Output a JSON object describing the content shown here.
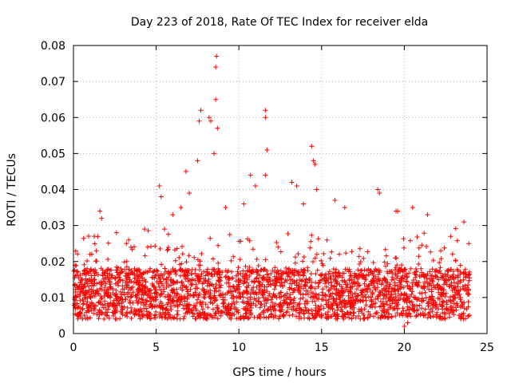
{
  "chart_data": {
    "type": "scatter",
    "title": "Day 223 of 2018, Rate Of TEC Index for receiver elda",
    "xlabel": "GPS time / hours",
    "ylabel": "ROTI / TECUs",
    "xlim": [
      0,
      25
    ],
    "ylim": [
      0,
      0.08
    ],
    "xticks": [
      0,
      5,
      10,
      15,
      20,
      25
    ],
    "yticks": [
      0,
      0.01,
      0.02,
      0.03,
      0.04,
      0.05,
      0.06,
      0.07,
      0.08
    ],
    "xtick_labels": [
      "0",
      "5",
      "10",
      "15",
      "20",
      "25"
    ],
    "ytick_labels": [
      "0",
      "0.01",
      "0.02",
      "0.03",
      "0.04",
      "0.05",
      "0.06",
      "0.07",
      "0.08"
    ],
    "grid": true,
    "marker": "+",
    "color": "#ff0000",
    "series": [
      {
        "name": "ROTI",
        "note": "dense band roughly 0.004-0.02 across 0-24 h; listed points are representative peaks and sampled values",
        "points": [
          [
            0.1,
            0.019
          ],
          [
            0.5,
            0.015
          ],
          [
            1.0,
            0.022
          ],
          [
            1.6,
            0.034
          ],
          [
            1.7,
            0.032
          ],
          [
            2.6,
            0.028
          ],
          [
            3.2,
            0.025
          ],
          [
            4.3,
            0.029
          ],
          [
            5.2,
            0.041
          ],
          [
            5.3,
            0.038
          ],
          [
            5.5,
            0.029
          ],
          [
            6.0,
            0.033
          ],
          [
            6.5,
            0.035
          ],
          [
            6.8,
            0.045
          ],
          [
            7.0,
            0.039
          ],
          [
            7.5,
            0.048
          ],
          [
            7.6,
            0.059
          ],
          [
            7.7,
            0.062
          ],
          [
            8.2,
            0.06
          ],
          [
            8.3,
            0.059
          ],
          [
            8.5,
            0.05
          ],
          [
            8.6,
            0.074
          ],
          [
            8.65,
            0.077
          ],
          [
            8.6,
            0.065
          ],
          [
            8.7,
            0.057
          ],
          [
            9.2,
            0.035
          ],
          [
            10.3,
            0.036
          ],
          [
            10.7,
            0.044
          ],
          [
            11.0,
            0.041
          ],
          [
            11.6,
            0.062
          ],
          [
            11.6,
            0.06
          ],
          [
            11.7,
            0.051
          ],
          [
            11.6,
            0.044
          ],
          [
            13.2,
            0.042
          ],
          [
            13.5,
            0.041
          ],
          [
            13.9,
            0.036
          ],
          [
            14.4,
            0.052
          ],
          [
            14.5,
            0.048
          ],
          [
            14.6,
            0.047
          ],
          [
            14.7,
            0.04
          ],
          [
            15.8,
            0.037
          ],
          [
            16.4,
            0.035
          ],
          [
            18.4,
            0.04
          ],
          [
            18.5,
            0.039
          ],
          [
            19.5,
            0.034
          ],
          [
            19.6,
            0.034
          ],
          [
            20.0,
            0.002
          ],
          [
            20.2,
            0.003
          ],
          [
            20.5,
            0.035
          ],
          [
            21.4,
            0.033
          ],
          [
            22.2,
            0.023
          ],
          [
            22.8,
            0.027
          ],
          [
            23.6,
            0.031
          ],
          [
            23.9,
            0.025
          ]
        ]
      }
    ]
  }
}
